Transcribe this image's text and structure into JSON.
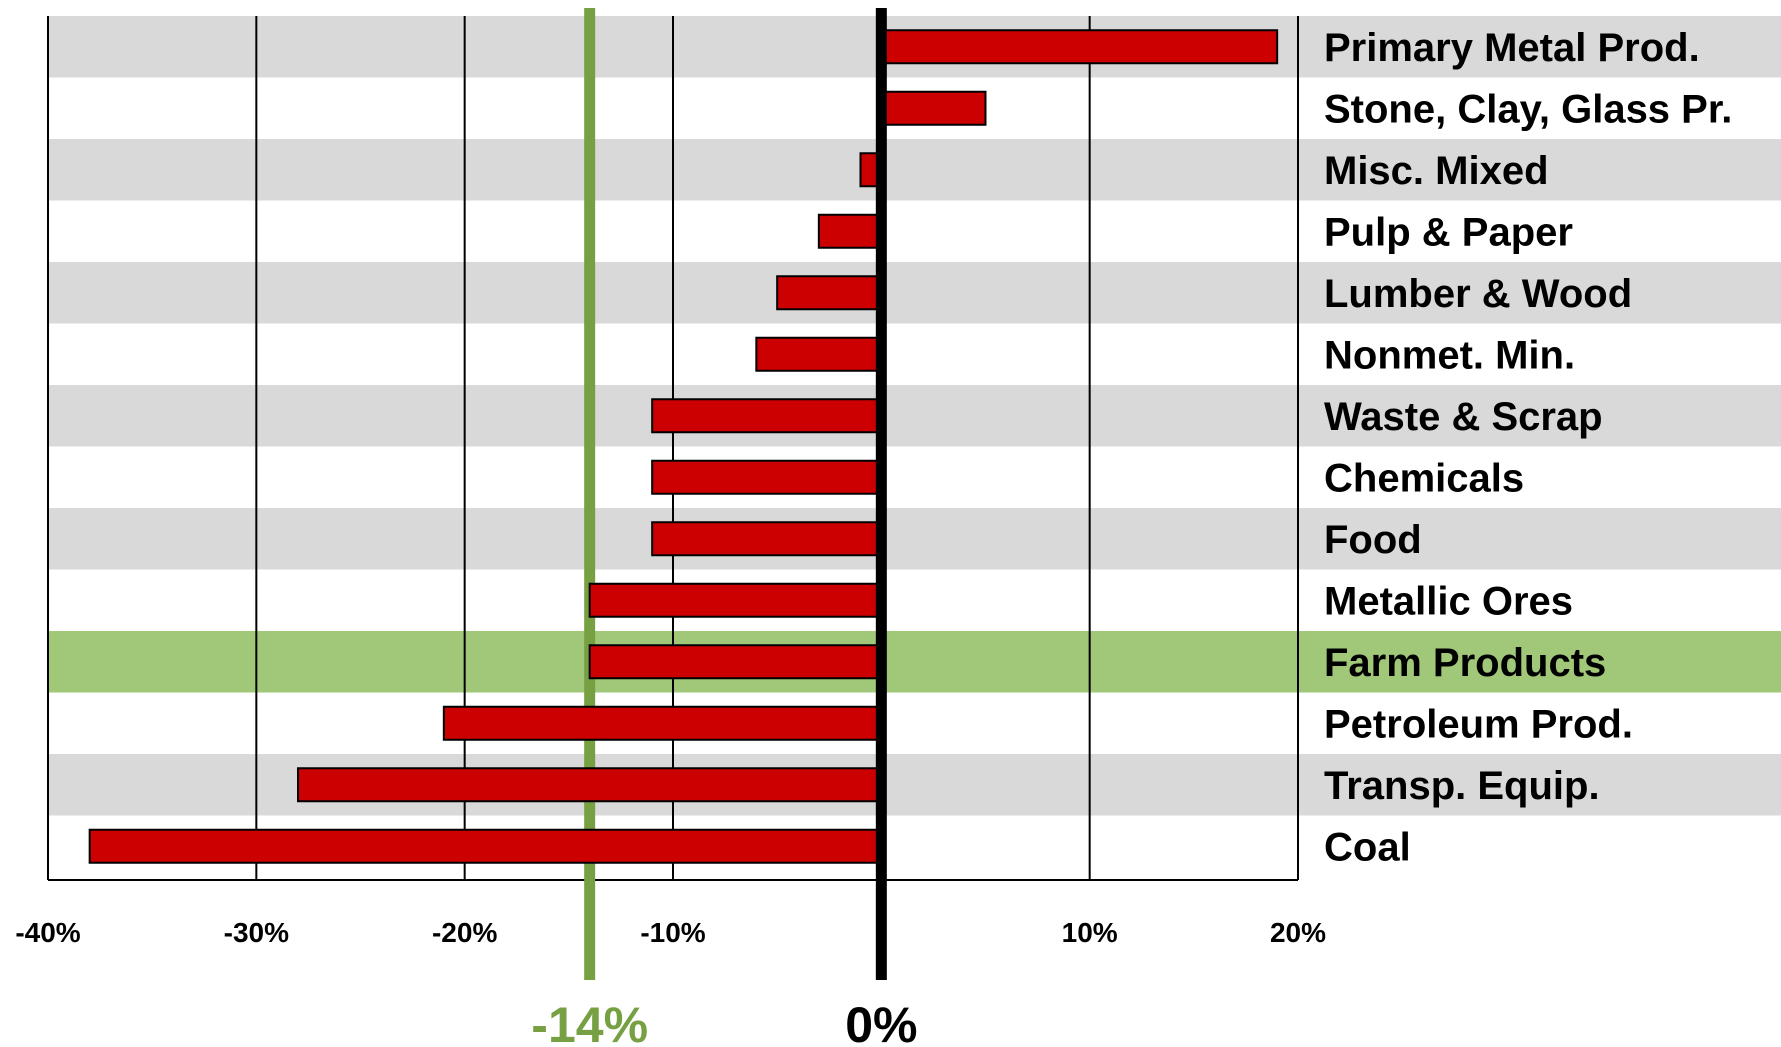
{
  "chart_data": {
    "type": "bar",
    "orientation": "horizontal",
    "categories": [
      "Primary Metal Prod.",
      "Stone, Clay, Glass Pr.",
      "Misc. Mixed",
      "Pulp & Paper",
      "Lumber & Wood",
      "Nonmet. Min.",
      "Waste & Scrap",
      "Chemicals",
      "Food",
      "Metallic Ores",
      "Farm Products",
      "Petroleum Prod.",
      "Transp. Equip.",
      "Coal"
    ],
    "values": [
      19,
      5,
      -1,
      -3,
      -5,
      -6,
      -11,
      -11,
      -11,
      -14,
      -14,
      -21,
      -28,
      -38
    ],
    "highlight_category": "Farm Products",
    "xlim": [
      -40,
      20
    ],
    "xticks": [
      -40,
      -30,
      -20,
      -10,
      10,
      20
    ],
    "xtick_labels": [
      "-40%",
      "-30%",
      "-20%",
      "-10%",
      "10%",
      "20%"
    ],
    "reference_lines": [
      {
        "value": -14,
        "label": "-14%",
        "color": "#77a043"
      },
      {
        "value": 0,
        "label": "0%",
        "color": "#000000"
      }
    ],
    "grid": true,
    "title": "",
    "xlabel": "",
    "ylabel": "",
    "colors": {
      "bar": "#cc0000",
      "bar_edge": "#000000",
      "band_alt": "#d9d9d9",
      "band_highlight": "#a0c878",
      "gridline": "#000000"
    }
  }
}
